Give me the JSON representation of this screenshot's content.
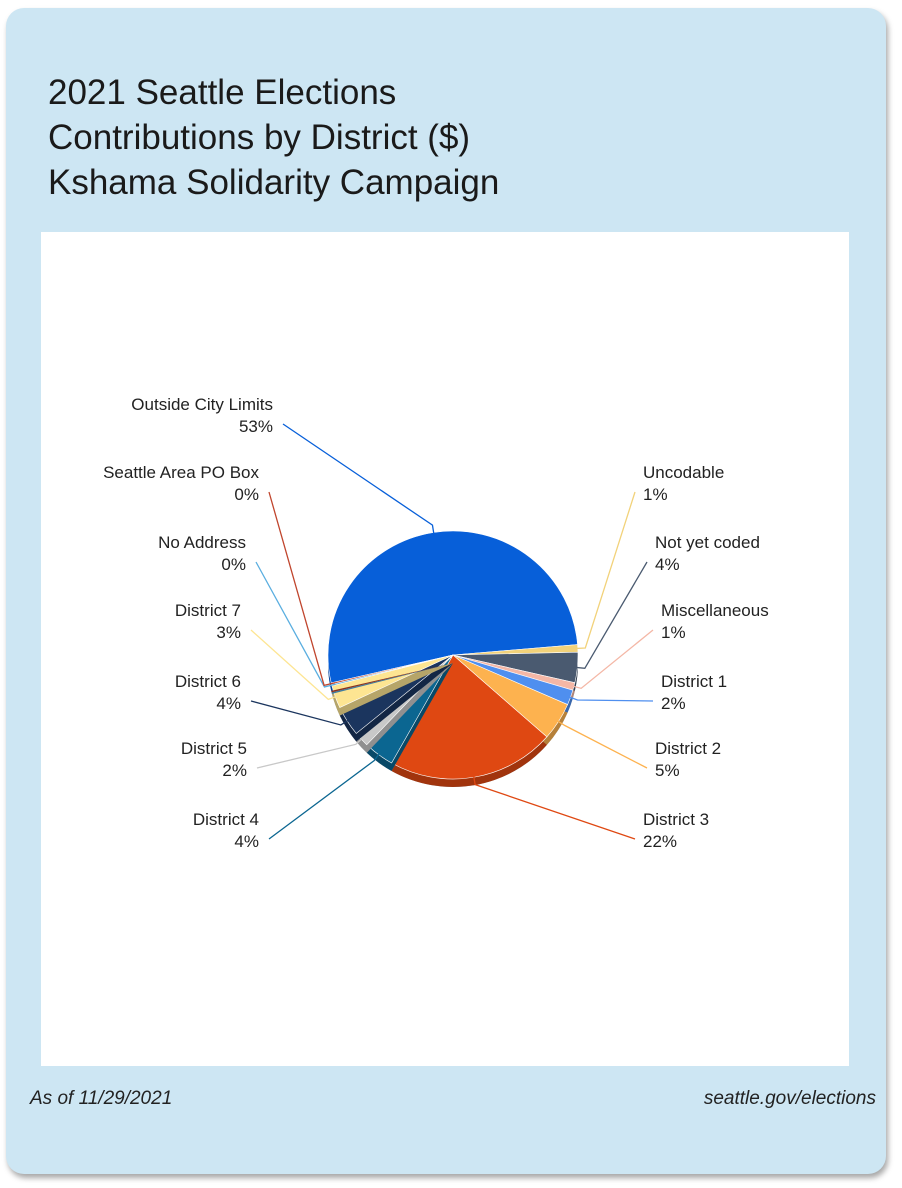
{
  "title_lines": [
    "2021 Seattle Elections",
    "Contributions by District ($)",
    "Kshama Solidarity Campaign"
  ],
  "footer": {
    "date": "As of 11/29/2021",
    "site": "seattle.gov/elections"
  },
  "chart_data": {
    "type": "pie",
    "title": "",
    "unit": "%",
    "slices": [
      {
        "label": "Outside City Limits",
        "value_label": "53%",
        "value": 53,
        "color": "#075fd9"
      },
      {
        "label": "Uncodable",
        "value_label": "1%",
        "value": 1,
        "color": "#f2d27a"
      },
      {
        "label": "Not yet coded",
        "value_label": "4%",
        "value": 4,
        "color": "#4a5a70"
      },
      {
        "label": "Miscellaneous",
        "value_label": "1%",
        "value": 1,
        "color": "#f4b7a6"
      },
      {
        "label": "District 1",
        "value_label": "2%",
        "value": 2,
        "color": "#4f8fef"
      },
      {
        "label": "District 2",
        "value_label": "5%",
        "value": 5,
        "color": "#fdb24f"
      },
      {
        "label": "District 3",
        "value_label": "22%",
        "value": 22,
        "color": "#df4812"
      },
      {
        "label": "District 4",
        "value_label": "4%",
        "value": 4,
        "color": "#0b6691"
      },
      {
        "label": "District 5",
        "value_label": "2%",
        "value": 2,
        "color": "#c8c8c8"
      },
      {
        "label": "District 6",
        "value_label": "4%",
        "value": 4,
        "color": "#1b355e"
      },
      {
        "label": "District 7",
        "value_label": "3%",
        "value": 3,
        "color": "#fde592"
      },
      {
        "label": "No Address",
        "value_label": "0%",
        "value": 0.2,
        "color": "#5aaee0"
      },
      {
        "label": "Seattle Area PO Box",
        "value_label": "0%",
        "value": 0.2,
        "color": "#c0452d"
      }
    ]
  }
}
